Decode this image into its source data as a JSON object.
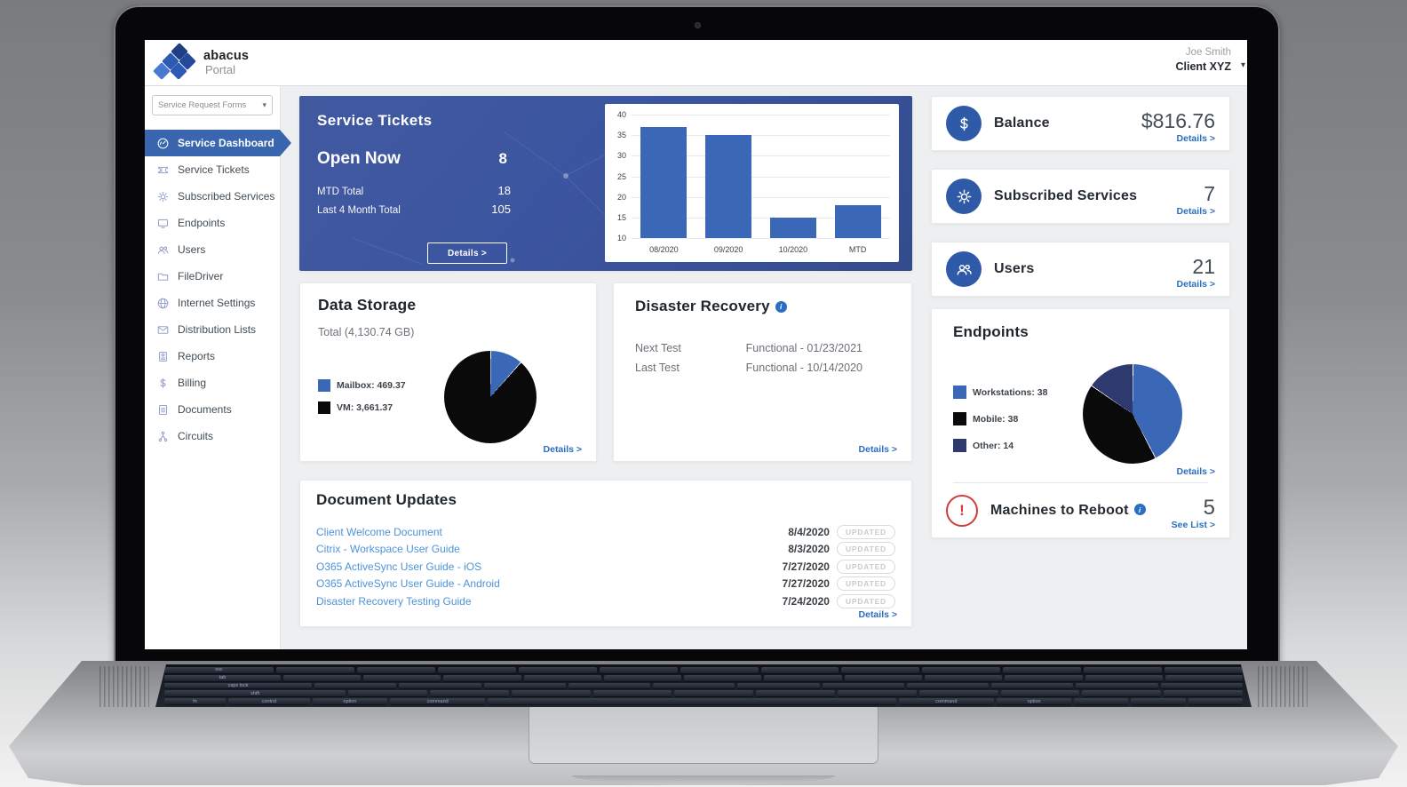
{
  "colors": {
    "accent_blue": "#2f5aa8",
    "link_blue": "#2a6fc2",
    "panel_blue": "#3c55a0",
    "chart_blue": "#3a68b7",
    "pie_black": "#0a0a0a",
    "pie_navy": "#2e3a6e",
    "alert_red": "#d23b3b"
  },
  "header": {
    "logo_title": "abacus",
    "logo_subtitle": "Portal",
    "user_name": "Joe Smith",
    "user_client": "Client XYZ"
  },
  "sidebar": {
    "dropdown_label": "Service Request Forms",
    "items": [
      {
        "label": "Service Dashboard",
        "icon": "gauge",
        "active": true
      },
      {
        "label": "Service Tickets",
        "icon": "ticket",
        "active": false
      },
      {
        "label": "Subscribed Services",
        "icon": "gear",
        "active": false
      },
      {
        "label": "Endpoints",
        "icon": "monitor",
        "active": false
      },
      {
        "label": "Users",
        "icon": "users",
        "active": false
      },
      {
        "label": "FileDriver",
        "icon": "folder",
        "active": false
      },
      {
        "label": "Internet Settings",
        "icon": "globe",
        "active": false
      },
      {
        "label": "Distribution Lists",
        "icon": "envelope",
        "active": false
      },
      {
        "label": "Reports",
        "icon": "report",
        "active": false
      },
      {
        "label": "Billing",
        "icon": "dollar",
        "active": false
      },
      {
        "label": "Documents",
        "icon": "document",
        "active": false
      },
      {
        "label": "Circuits",
        "icon": "circuit",
        "active": false
      }
    ]
  },
  "service_tickets": {
    "title": "Service Tickets",
    "open_now_label": "Open Now",
    "open_now_value": "8",
    "mtd_label": "MTD Total",
    "mtd_value": "18",
    "last4_label": "Last 4 Month Total",
    "last4_value": "105",
    "details_label": "Details >"
  },
  "data_storage": {
    "title": "Data Storage",
    "total_label": "Total (4,130.74 GB)",
    "legend": [
      {
        "label": "Mailbox",
        "value": "469.37",
        "color": "#3a68b7"
      },
      {
        "label": "VM",
        "value": "3,661.37",
        "color": "#0a0a0a"
      }
    ],
    "details_label": "Details >"
  },
  "disaster_recovery": {
    "title": "Disaster Recovery",
    "rows": [
      {
        "label": "Next Test",
        "value": "Functional - 01/23/2021"
      },
      {
        "label": "Last Test",
        "value": "Functional - 10/14/2020"
      }
    ],
    "details_label": "Details >"
  },
  "document_updates": {
    "title": "Document Updates",
    "rows": [
      {
        "name": "Client Welcome Document",
        "date": "8/4/2020",
        "badge": "UPDATED"
      },
      {
        "name": "Citrix - Workspace User Guide",
        "date": "8/3/2020",
        "badge": "UPDATED"
      },
      {
        "name": "O365 ActiveSync User Guide - iOS",
        "date": "7/27/2020",
        "badge": "UPDATED"
      },
      {
        "name": "O365 ActiveSync User Guide - Android",
        "date": "7/27/2020",
        "badge": "UPDATED"
      },
      {
        "name": "Disaster Recovery Testing Guide",
        "date": "7/24/2020",
        "badge": "UPDATED"
      }
    ],
    "details_label": "Details >"
  },
  "right_column": {
    "balance": {
      "title": "Balance",
      "value": "$816.76",
      "details_label": "Details >"
    },
    "subscribed_services": {
      "title": "Subscribed Services",
      "value": "7",
      "details_label": "Details >"
    },
    "users": {
      "title": "Users",
      "value": "21",
      "details_label": "Details >"
    },
    "endpoints": {
      "title": "Endpoints",
      "legend": [
        {
          "label": "Workstations",
          "value": "38",
          "color": "#3a68b7"
        },
        {
          "label": "Mobile",
          "value": "38",
          "color": "#0a0a0a"
        },
        {
          "label": "Other",
          "value": "14",
          "color": "#2e3a6e"
        }
      ],
      "details_label": "Details >"
    },
    "machines_to_reboot": {
      "title": "Machines to Reboot",
      "value": "5",
      "see_list_label": "See List >"
    }
  },
  "chart_data": [
    {
      "id": "tickets_bar",
      "type": "bar",
      "categories": [
        "08/2020",
        "09/2020",
        "10/2020",
        "MTD"
      ],
      "values": [
        37,
        35,
        15,
        18
      ],
      "title": "",
      "xlabel": "",
      "ylabel": "",
      "ylim": [
        10,
        40
      ],
      "yticks": [
        10,
        15,
        20,
        25,
        30,
        35,
        40
      ],
      "bar_color": "#3a68b7",
      "grid": true,
      "legend_position": "none"
    },
    {
      "id": "storage_pie",
      "type": "pie",
      "labels": [
        "Mailbox",
        "VM"
      ],
      "values": [
        469.37,
        3661.37
      ],
      "colors": [
        "#3a68b7",
        "#0a0a0a"
      ],
      "title": "Data Storage",
      "total": 4130.74,
      "start_angle_deg": 0,
      "direction": "clockwise"
    },
    {
      "id": "endpoints_pie",
      "type": "pie",
      "labels": [
        "Workstations",
        "Mobile",
        "Other"
      ],
      "values": [
        38,
        38,
        14
      ],
      "colors": [
        "#3a68b7",
        "#0a0a0a",
        "#2e3a6e"
      ],
      "title": "Endpoints",
      "start_angle_deg": 0,
      "direction": "clockwise"
    }
  ],
  "keyboard": {
    "visible_key_labels": [
      "esc",
      "tab",
      "caps lock",
      "shift",
      "fn",
      "control",
      "option",
      "command"
    ]
  }
}
